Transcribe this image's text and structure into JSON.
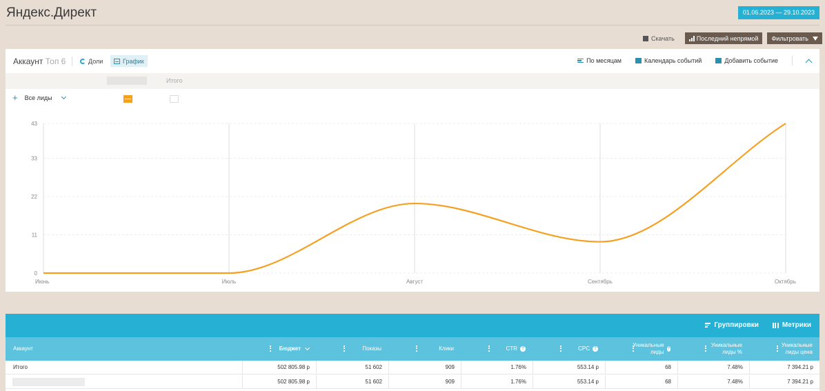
{
  "header": {
    "title": "Яндекс.Директ",
    "date_range": "01.06.2023 — 29.10.2023"
  },
  "actions": {
    "download": "Скачать",
    "attribution": "Последний непрямой",
    "filter": "Фильтровать"
  },
  "chart_panel": {
    "account_label": "Аккаунт",
    "top_label": "Топ 6",
    "shares_label": "Доли",
    "graph_label": "График",
    "by_months": "По месяцам",
    "events_calendar": "Календарь событий",
    "add_event": "Добавить событие",
    "legend_total": "Итого",
    "leads_filter": "Все лиды"
  },
  "chart_data": {
    "type": "line",
    "categories": [
      "Июнь",
      "Июль",
      "Август",
      "Сентябрь",
      "Октябрь"
    ],
    "y_ticks": [
      0,
      11,
      22,
      33,
      43
    ],
    "ylim": [
      0,
      43
    ],
    "series": [
      {
        "values": [
          0,
          0,
          20,
          9,
          43
        ],
        "color": "#f5a021"
      }
    ],
    "grid": true,
    "smooth": true
  },
  "table": {
    "groupings": "Группировки",
    "metrics": "Метрики",
    "columns": [
      {
        "label": "Аккаунт"
      },
      {
        "label": "Бюджет",
        "sorted": true
      },
      {
        "label": "Показы"
      },
      {
        "label": "Клики"
      },
      {
        "label": "CTR",
        "help": true
      },
      {
        "label": "CPC",
        "help": true
      },
      {
        "label": "Уникальные лиды",
        "help": true
      },
      {
        "label": "Уникальные лиды %"
      },
      {
        "label": "Уникальные лиды цена"
      }
    ],
    "rows": [
      {
        "name": "Итого",
        "values": [
          "502 805.98 р",
          "51 602",
          "909",
          "1.76%",
          "553.14 р",
          "68",
          "7.48%",
          "7 394.21 р"
        ]
      },
      {
        "name": "",
        "values": [
          "502 805.98 р",
          "51 602",
          "909",
          "1.76%",
          "553.14 р",
          "68",
          "7.48%",
          "7 394.21 р"
        ]
      }
    ]
  }
}
